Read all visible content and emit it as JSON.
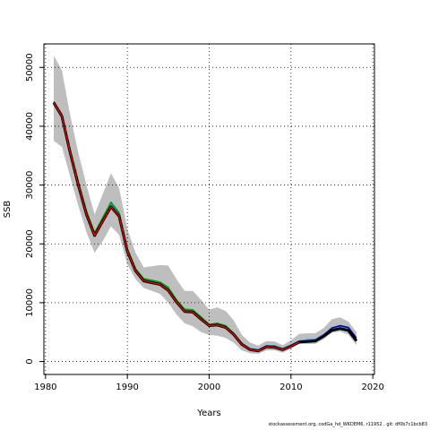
{
  "chart_data": {
    "type": "line",
    "xlabel": "Years",
    "ylabel": "SSB",
    "xlim": [
      1979.8,
      2020.2
    ],
    "ylim": [
      -2200,
      54000
    ],
    "x_ticks": [
      1980,
      1990,
      2000,
      2010,
      2020
    ],
    "y_ticks": [
      0,
      10000,
      20000,
      30000,
      40000,
      50000
    ],
    "grid": true,
    "band": {
      "x": [
        1981,
        1982,
        1983,
        1984,
        1985,
        1986,
        1987,
        1988,
        1989,
        1990,
        1991,
        1992,
        1993,
        1994,
        1995,
        1996,
        1997,
        1998,
        1999,
        2000,
        2001,
        2002,
        2003,
        2004,
        2005,
        2006,
        2007,
        2008,
        2009,
        2010,
        2011,
        2012,
        2013,
        2014,
        2015,
        2016,
        2017,
        2018
      ],
      "upper": [
        52000,
        49500,
        42000,
        35500,
        30000,
        25000,
        28500,
        32000,
        29500,
        22500,
        18500,
        16000,
        16200,
        16400,
        16300,
        14000,
        12000,
        12000,
        10500,
        8800,
        9200,
        8600,
        7000,
        4500,
        3200,
        2700,
        3500,
        3400,
        2800,
        3600,
        4700,
        4800,
        4800,
        5700,
        7200,
        7500,
        6800,
        5000
      ],
      "lower": [
        37500,
        36500,
        31500,
        26500,
        22000,
        18500,
        20500,
        23000,
        21500,
        16500,
        14000,
        12500,
        12000,
        11500,
        10000,
        8000,
        6500,
        6000,
        5000,
        4500,
        4400,
        4000,
        3200,
        1900,
        1400,
        1300,
        1900,
        1900,
        1500,
        2200,
        3000,
        3000,
        3000,
        3800,
        4900,
        5100,
        4600,
        2800
      ]
    },
    "series": [
      {
        "color": "#ffff00",
        "x": [
          1981,
          1982,
          1983,
          1984,
          1985,
          1986,
          1987,
          1988,
          1989,
          1990,
          1991,
          1992,
          1993,
          1994,
          1995,
          1996,
          1997,
          1998,
          1999,
          2000,
          2001,
          2002,
          2003,
          2004,
          2005,
          2006,
          2007,
          2008,
          2009,
          2010,
          2011,
          2012,
          2013,
          2014
        ],
        "y": [
          44200,
          41800,
          35800,
          30200,
          25200,
          21600,
          24100,
          26600,
          25000,
          18900,
          15600,
          13900,
          13600,
          13300,
          12300,
          10300,
          8700,
          8600,
          7400,
          6200,
          6400,
          6000,
          4700,
          3000,
          2100,
          1900,
          2600,
          2600,
          2100,
          2700,
          3400,
          3600,
          3600,
          4400
        ]
      },
      {
        "color": "#1e90ff",
        "x": [
          1981,
          1982,
          1983,
          1984,
          1985,
          1986,
          1987,
          1988,
          1989,
          1990,
          1991,
          1992,
          1993,
          1994,
          1995,
          1996,
          1997,
          1998,
          1999,
          2000,
          2001,
          2002,
          2003,
          2004,
          2005,
          2006,
          2007,
          2008,
          2009,
          2010,
          2011,
          2012,
          2013,
          2014,
          2015,
          2016,
          2017
        ],
        "y": [
          44100,
          41900,
          35900,
          30300,
          25400,
          21800,
          24300,
          26800,
          25100,
          19000,
          15700,
          14000,
          13700,
          13400,
          12400,
          10400,
          8800,
          8700,
          7500,
          6300,
          6500,
          6100,
          4800,
          3100,
          2200,
          2000,
          2700,
          2700,
          2200,
          2800,
          3500,
          3700,
          3800,
          4600,
          5600,
          5900,
          5600
        ]
      },
      {
        "color": "#00a000",
        "x": [
          1981,
          1982,
          1983,
          1984,
          1985,
          1986,
          1987,
          1988,
          1989,
          1990,
          1991,
          1992,
          1993,
          1994,
          1995,
          1996,
          1997,
          1998,
          1999,
          2000,
          2001,
          2002,
          2003,
          2004,
          2005,
          2006,
          2007,
          2008,
          2009,
          2010,
          2011,
          2012,
          2013,
          2014,
          2015,
          2016
        ],
        "y": [
          44200,
          42000,
          36100,
          30600,
          25600,
          21900,
          24500,
          27100,
          25300,
          19200,
          15800,
          14100,
          13800,
          13500,
          12600,
          10500,
          8900,
          8800,
          7600,
          6300,
          6500,
          6100,
          4800,
          3100,
          2100,
          1900,
          2600,
          2600,
          2100,
          2700,
          3400,
          3500,
          3600,
          4500,
          5400,
          5700
        ]
      },
      {
        "color": "#00008b",
        "x": [
          1981,
          1982,
          1983,
          1984,
          1985,
          1986,
          1987,
          1988,
          1989,
          1990,
          1991,
          1992,
          1993,
          1994,
          1995,
          1996,
          1997,
          1998,
          1999,
          2000,
          2001,
          2002,
          2003,
          2004,
          2005,
          2006,
          2007,
          2008,
          2009,
          2010,
          2011,
          2012,
          2013,
          2014,
          2015,
          2016,
          2017,
          2018
        ],
        "y": [
          44100,
          41800,
          35700,
          30100,
          25100,
          21500,
          24000,
          26400,
          24800,
          18800,
          15500,
          13800,
          13500,
          13200,
          12200,
          10200,
          8600,
          8500,
          7300,
          6200,
          6300,
          5900,
          4700,
          3000,
          2100,
          1900,
          2600,
          2500,
          2100,
          2700,
          3400,
          3500,
          3600,
          4500,
          5700,
          6100,
          5800,
          4000
        ]
      },
      {
        "color": "#000000",
        "width": 3,
        "x": [
          1981,
          1982,
          1983,
          1984,
          1985,
          1986,
          1987,
          1988,
          1989,
          1990,
          1991,
          1992,
          1993,
          1994,
          1995,
          1996,
          1997,
          1998,
          1999,
          2000,
          2001,
          2002,
          2003,
          2004,
          2005,
          2006,
          2007,
          2008,
          2009,
          2010,
          2011,
          2012,
          2013,
          2014,
          2015,
          2016,
          2017,
          2018
        ],
        "y": [
          44000,
          41700,
          35600,
          30000,
          25000,
          21400,
          23900,
          26300,
          24700,
          18700,
          15400,
          13700,
          13400,
          13100,
          12100,
          10100,
          8500,
          8400,
          7200,
          6100,
          6200,
          5800,
          4600,
          2900,
          2000,
          1800,
          2500,
          2400,
          2000,
          2600,
          3300,
          3400,
          3500,
          4300,
          5300,
          5600,
          5300,
          3500
        ]
      },
      {
        "color": "#ff0000",
        "width": 1.2,
        "x": [
          1981,
          1982,
          1983,
          1984,
          1985,
          1986,
          1987,
          1988,
          1989,
          1990,
          1991,
          1992,
          1993,
          1994,
          1995,
          1996,
          1997,
          1998,
          1999,
          2000,
          2001,
          2002,
          2003,
          2004,
          2005,
          2006,
          2007,
          2008,
          2009,
          2010,
          2011
        ],
        "y": [
          44000,
          41700,
          35600,
          30000,
          25000,
          21400,
          23900,
          26300,
          24700,
          18700,
          15400,
          13700,
          13400,
          13100,
          12100,
          10100,
          8500,
          8400,
          7200,
          6100,
          6200,
          5800,
          4600,
          2900,
          2000,
          1800,
          2500,
          2400,
          2000,
          2600,
          3300
        ]
      }
    ]
  },
  "footer": {
    "text": "stockassessment.org, codGa_hd_WKDEM6, r11952 , git: df0b7c1bcb83"
  },
  "colors": {
    "band": "#bebebe",
    "grid": "#000000"
  }
}
